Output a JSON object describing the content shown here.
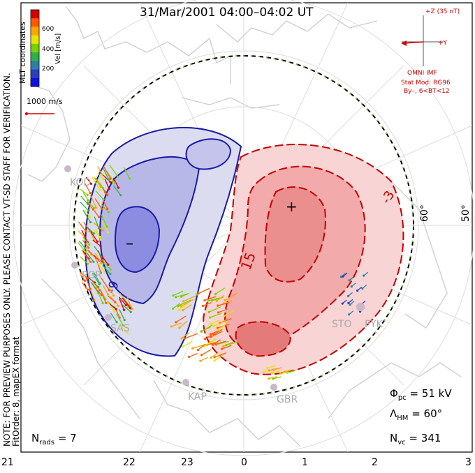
{
  "title": "31/Mar/2001 04:00–04:02 UT",
  "side_note": {
    "line1": "NOTE: FOR PREVIEW PURPOSES ONLY. PLEASE CONTACT VT-SD STAFF FOR VERIFICATION.",
    "line2": "FitOrder: 8, mapEX format"
  },
  "colorbar": {
    "coord_label": "MLT coordinates",
    "unit_label": "Vel [m/s]",
    "ticks": [
      "600",
      "400",
      "200"
    ],
    "colors": [
      "#d40000",
      "#ff5a00",
      "#ffa500",
      "#e6e600",
      "#78d200",
      "#2fb04a",
      "#2e7fa8",
      "#2a3fc0",
      "#1010e0"
    ]
  },
  "ref_vector_label": "1000 m/s",
  "imf": {
    "z_label": "+Z (35 nT)",
    "y_label": "+Y",
    "source": "OMNI IMF",
    "model": "Stat Mod: RG96",
    "conditions": "By–, 6<BT<12"
  },
  "lat_labels": [
    "60°",
    "50°"
  ],
  "contour_labels": [
    "-9",
    "15",
    "-3"
  ],
  "radar_sites": [
    "KOD",
    "PGR",
    "SAS",
    "KAP",
    "GBR",
    "STO",
    "PYK"
  ],
  "stats": {
    "phi_pc": "= 51 kV",
    "lambda_hm": "= 60°",
    "n_vc": "= 341",
    "n_rads": "= 7"
  },
  "mlt_ticks": [
    "21",
    "22",
    "23",
    "0",
    "1",
    "2",
    "3"
  ],
  "potential": {
    "min_marker": "–",
    "max_marker": "+"
  }
}
